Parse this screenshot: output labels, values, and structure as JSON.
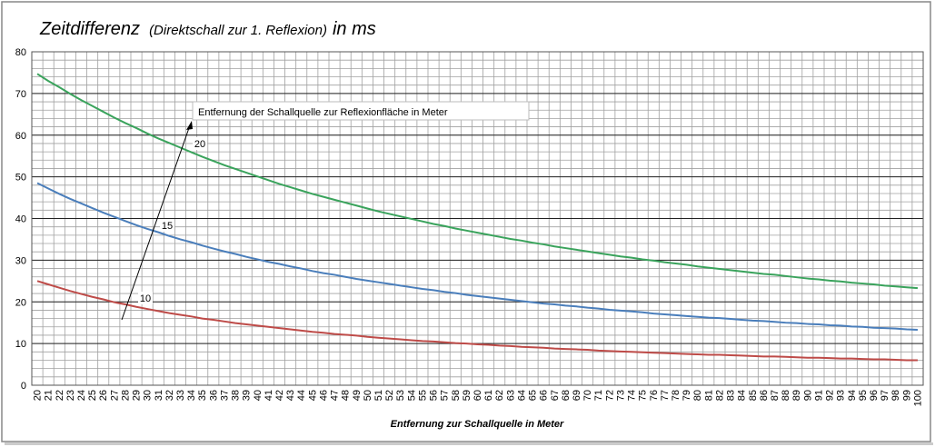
{
  "chart_data": {
    "type": "line",
    "title": "Zeitdifferenz",
    "subtitle": "(Direktschall zur 1. Reflexion)",
    "title_unit": "in ms",
    "x_label": "Entfernung zur Schallquelle  in Meter",
    "annotation": "Entfernung der Schallquelle zur  Reflexionfläche  in Meter",
    "categories": [
      20,
      21,
      22,
      23,
      24,
      25,
      26,
      27,
      28,
      29,
      30,
      31,
      32,
      33,
      34,
      35,
      36,
      37,
      38,
      39,
      40,
      41,
      42,
      43,
      44,
      45,
      46,
      47,
      48,
      49,
      50,
      51,
      52,
      53,
      54,
      55,
      56,
      57,
      58,
      59,
      60,
      61,
      62,
      63,
      64,
      65,
      66,
      67,
      68,
      69,
      70,
      71,
      72,
      73,
      74,
      75,
      76,
      77,
      78,
      79,
      80,
      81,
      82,
      83,
      84,
      85,
      86,
      87,
      88,
      89,
      90,
      91,
      92,
      93,
      94,
      95,
      96,
      97,
      98,
      99,
      100
    ],
    "series": [
      {
        "name": "10",
        "color": "#be4b48",
        "values": [
          25.0,
          24.2,
          23.4,
          22.6,
          21.9,
          21.2,
          20.6,
          19.9,
          19.4,
          18.8,
          18.3,
          17.8,
          17.3,
          16.9,
          16.5,
          16.0,
          15.7,
          15.3,
          14.9,
          14.6,
          14.3,
          14.0,
          13.7,
          13.4,
          13.1,
          12.8,
          12.6,
          12.3,
          12.1,
          11.9,
          11.6,
          11.4,
          11.2,
          11.0,
          10.8,
          10.6,
          10.5,
          10.3,
          10.1,
          10.0,
          9.8,
          9.7,
          9.5,
          9.4,
          9.2,
          9.1,
          9.0,
          8.8,
          8.7,
          8.6,
          8.5,
          8.3,
          8.2,
          8.1,
          8.0,
          7.9,
          7.8,
          7.7,
          7.6,
          7.5,
          7.4,
          7.3,
          7.3,
          7.2,
          7.1,
          7.0,
          6.9,
          6.9,
          6.8,
          6.7,
          6.6,
          6.6,
          6.5,
          6.4,
          6.4,
          6.3,
          6.2,
          6.2,
          6.1,
          6.0,
          6.0
        ]
      },
      {
        "name": "15",
        "color": "#4a7ebb",
        "values": [
          48.5,
          47.2,
          45.9,
          44.7,
          43.6,
          42.5,
          41.4,
          40.4,
          39.4,
          38.4,
          37.5,
          36.7,
          35.8,
          35.0,
          34.3,
          33.5,
          32.8,
          32.1,
          31.5,
          30.8,
          30.2,
          29.6,
          29.1,
          28.5,
          28.0,
          27.4,
          26.9,
          26.5,
          26.0,
          25.5,
          25.1,
          24.7,
          24.3,
          23.9,
          23.5,
          23.1,
          22.8,
          22.4,
          22.1,
          21.7,
          21.4,
          21.1,
          20.8,
          20.5,
          20.2,
          19.9,
          19.6,
          19.4,
          19.1,
          18.9,
          18.6,
          18.4,
          18.1,
          17.9,
          17.7,
          17.5,
          17.2,
          17.0,
          16.8,
          16.6,
          16.4,
          16.2,
          16.1,
          15.9,
          15.7,
          15.5,
          15.4,
          15.2,
          15.0,
          14.9,
          14.7,
          14.6,
          14.4,
          14.3,
          14.1,
          14.0,
          13.8,
          13.7,
          13.6,
          13.4,
          13.3
        ]
      },
      {
        "name": "20",
        "color": "#3aa35c",
        "values": [
          74.7,
          73.0,
          71.5,
          69.9,
          68.4,
          67.0,
          65.6,
          64.2,
          62.9,
          61.7,
          60.4,
          59.2,
          58.1,
          57.0,
          55.9,
          54.8,
          53.8,
          52.8,
          51.9,
          51.0,
          50.1,
          49.2,
          48.3,
          47.5,
          46.7,
          45.9,
          45.2,
          44.5,
          43.8,
          43.1,
          42.4,
          41.7,
          41.1,
          40.5,
          39.9,
          39.3,
          38.7,
          38.2,
          37.6,
          37.1,
          36.6,
          36.1,
          35.6,
          35.1,
          34.7,
          34.2,
          33.8,
          33.3,
          32.9,
          32.5,
          32.1,
          31.7,
          31.3,
          30.9,
          30.6,
          30.2,
          29.9,
          29.5,
          29.2,
          28.9,
          28.5,
          28.2,
          27.9,
          27.6,
          27.3,
          27.0,
          26.7,
          26.5,
          26.2,
          25.9,
          25.6,
          25.4,
          25.1,
          24.9,
          24.6,
          24.4,
          24.2,
          23.9,
          23.7,
          23.5,
          23.3
        ]
      }
    ],
    "ylim": [
      0,
      80
    ],
    "yticks": [
      0,
      10,
      20,
      30,
      40,
      50,
      60,
      70,
      80
    ],
    "grid": true
  }
}
